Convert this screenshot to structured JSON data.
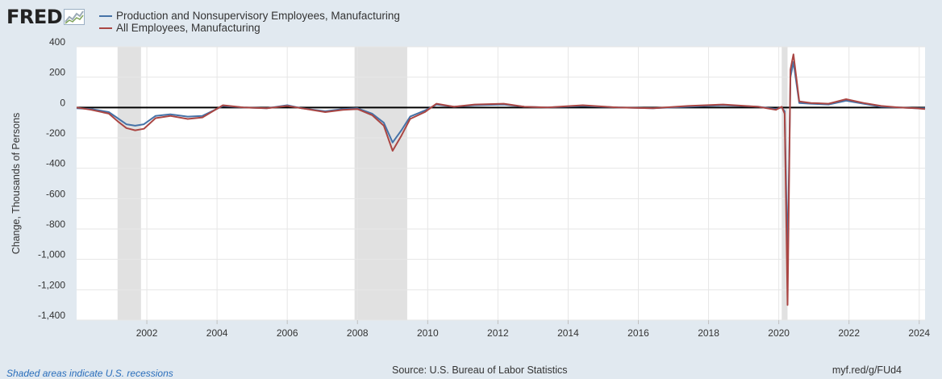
{
  "brand": {
    "name": "FRED"
  },
  "footer": {
    "recession_note": "Shaded areas indicate U.S. recessions",
    "source": "Source: U.S. Bureau of Labor Statistics",
    "short_url": "myf.red/g/FUd4"
  },
  "colors": {
    "background": "#e1e9f0",
    "plot_bg": "#ffffff",
    "recession": "#e1e1e1",
    "series1": "#4572a7",
    "series2": "#aa4643"
  },
  "chart_data": {
    "type": "line",
    "title": "",
    "xlabel": "",
    "ylabel": "Change, Thousands of Persons",
    "x_range": [
      "2000-01",
      "2024-03"
    ],
    "ylim": [
      -1400,
      400
    ],
    "yticks": [
      400,
      200,
      0,
      -200,
      -400,
      -600,
      -800,
      -1000,
      -1200,
      -1400
    ],
    "ytick_labels": [
      "400",
      "200",
      "0",
      "-200",
      "-400",
      "-600",
      "-800",
      "-1,000",
      "-1,200",
      "-1,400"
    ],
    "xticks": [
      "2002",
      "2004",
      "2006",
      "2008",
      "2010",
      "2012",
      "2014",
      "2016",
      "2018",
      "2020",
      "2022",
      "2024"
    ],
    "grid": true,
    "legend_position": "top-left",
    "recessions": [
      {
        "start": "2001-03",
        "end": "2001-11"
      },
      {
        "start": "2007-12",
        "end": "2009-06"
      },
      {
        "start": "2020-02",
        "end": "2020-04"
      }
    ],
    "series": [
      {
        "name": "Production and Nonsupervisory Employees, Manufacturing",
        "color": "#4572a7",
        "points": [
          [
            "2000-01",
            -5
          ],
          [
            "2000-06",
            -10
          ],
          [
            "2000-12",
            -30
          ],
          [
            "2001-03",
            -70
          ],
          [
            "2001-06",
            -110
          ],
          [
            "2001-09",
            -120
          ],
          [
            "2001-12",
            -110
          ],
          [
            "2002-04",
            -55
          ],
          [
            "2002-09",
            -45
          ],
          [
            "2003-03",
            -60
          ],
          [
            "2003-08",
            -55
          ],
          [
            "2004-03",
            10
          ],
          [
            "2004-10",
            0
          ],
          [
            "2005-06",
            -5
          ],
          [
            "2006-01",
            15
          ],
          [
            "2006-06",
            -5
          ],
          [
            "2007-02",
            -25
          ],
          [
            "2007-08",
            -10
          ],
          [
            "2008-01",
            -5
          ],
          [
            "2008-06",
            -40
          ],
          [
            "2008-10",
            -100
          ],
          [
            "2009-01",
            -230
          ],
          [
            "2009-04",
            -150
          ],
          [
            "2009-07",
            -60
          ],
          [
            "2009-12",
            -20
          ],
          [
            "2010-04",
            20
          ],
          [
            "2010-10",
            5
          ],
          [
            "2011-05",
            15
          ],
          [
            "2012-03",
            20
          ],
          [
            "2012-10",
            5
          ],
          [
            "2013-06",
            0
          ],
          [
            "2014-06",
            10
          ],
          [
            "2015-06",
            0
          ],
          [
            "2016-06",
            -5
          ],
          [
            "2017-06",
            5
          ],
          [
            "2018-06",
            15
          ],
          [
            "2019-06",
            5
          ],
          [
            "2019-12",
            -10
          ],
          [
            "2020-02",
            0
          ],
          [
            "2020-03",
            -25
          ],
          [
            "2020-04",
            -1000
          ],
          [
            "2020-05",
            200
          ],
          [
            "2020-06",
            300
          ],
          [
            "2020-08",
            30
          ],
          [
            "2020-12",
            25
          ],
          [
            "2021-06",
            20
          ],
          [
            "2021-12",
            45
          ],
          [
            "2022-06",
            25
          ],
          [
            "2022-12",
            5
          ],
          [
            "2023-06",
            0
          ],
          [
            "2023-12",
            -5
          ],
          [
            "2024-03",
            -5
          ]
        ]
      },
      {
        "name": "All Employees, Manufacturing",
        "color": "#aa4643",
        "points": [
          [
            "2000-01",
            0
          ],
          [
            "2000-06",
            -15
          ],
          [
            "2000-12",
            -40
          ],
          [
            "2001-03",
            -90
          ],
          [
            "2001-06",
            -135
          ],
          [
            "2001-09",
            -150
          ],
          [
            "2001-12",
            -140
          ],
          [
            "2002-04",
            -70
          ],
          [
            "2002-09",
            -55
          ],
          [
            "2003-03",
            -75
          ],
          [
            "2003-08",
            -65
          ],
          [
            "2004-03",
            15
          ],
          [
            "2004-10",
            0
          ],
          [
            "2005-06",
            -5
          ],
          [
            "2006-01",
            10
          ],
          [
            "2006-06",
            -5
          ],
          [
            "2007-02",
            -30
          ],
          [
            "2007-08",
            -15
          ],
          [
            "2008-01",
            -10
          ],
          [
            "2008-06",
            -50
          ],
          [
            "2008-10",
            -120
          ],
          [
            "2009-01",
            -285
          ],
          [
            "2009-04",
            -185
          ],
          [
            "2009-07",
            -75
          ],
          [
            "2009-12",
            -30
          ],
          [
            "2010-04",
            25
          ],
          [
            "2010-10",
            5
          ],
          [
            "2011-05",
            20
          ],
          [
            "2012-03",
            25
          ],
          [
            "2012-10",
            5
          ],
          [
            "2013-06",
            0
          ],
          [
            "2014-06",
            15
          ],
          [
            "2015-06",
            0
          ],
          [
            "2016-06",
            -5
          ],
          [
            "2017-06",
            10
          ],
          [
            "2018-06",
            20
          ],
          [
            "2019-06",
            5
          ],
          [
            "2019-12",
            -15
          ],
          [
            "2020-02",
            5
          ],
          [
            "2020-03",
            -40
          ],
          [
            "2020-04",
            -1300
          ],
          [
            "2020-05",
            250
          ],
          [
            "2020-06",
            350
          ],
          [
            "2020-08",
            40
          ],
          [
            "2020-12",
            30
          ],
          [
            "2021-06",
            25
          ],
          [
            "2021-12",
            55
          ],
          [
            "2022-06",
            30
          ],
          [
            "2022-12",
            10
          ],
          [
            "2023-06",
            0
          ],
          [
            "2023-12",
            -5
          ],
          [
            "2024-03",
            -10
          ]
        ]
      }
    ]
  }
}
